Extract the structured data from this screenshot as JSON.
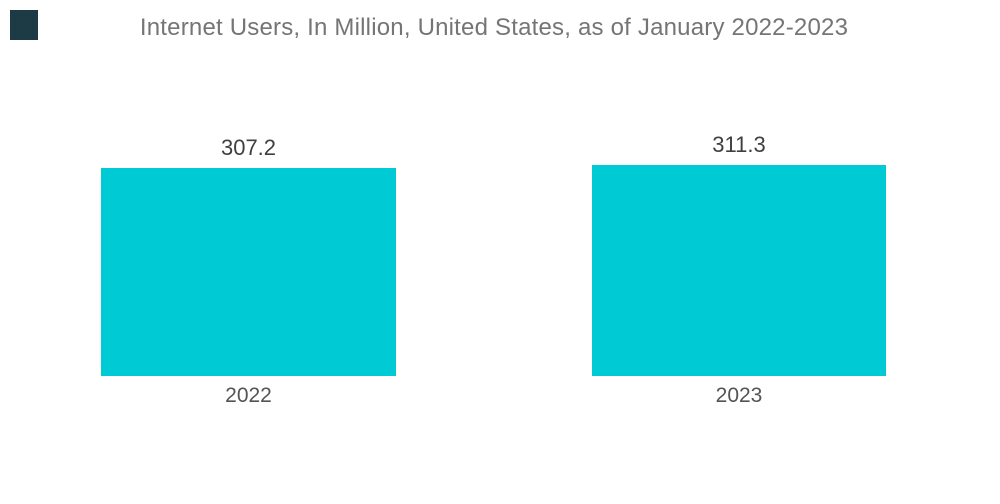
{
  "page": {
    "background": "#ffffff"
  },
  "brand": {
    "logo_square_color": "#1C3B44"
  },
  "chart_data": {
    "type": "bar",
    "title": "Internet Users, In Million, United States, as of January 2022-2023",
    "categories": [
      "2022",
      "2023"
    ],
    "values": [
      307.2,
      311.3
    ],
    "value_labels": [
      "307.2",
      "311.3"
    ],
    "xlabel": "",
    "ylabel": "",
    "ylim": [
      0,
      311.3
    ],
    "grid": false,
    "legend": false,
    "axes_visible": false,
    "style": {
      "bar_color": "#00CBD4",
      "title_color": "#757575",
      "value_label_color": "#3F3F3F",
      "category_label_color": "#545454"
    }
  }
}
